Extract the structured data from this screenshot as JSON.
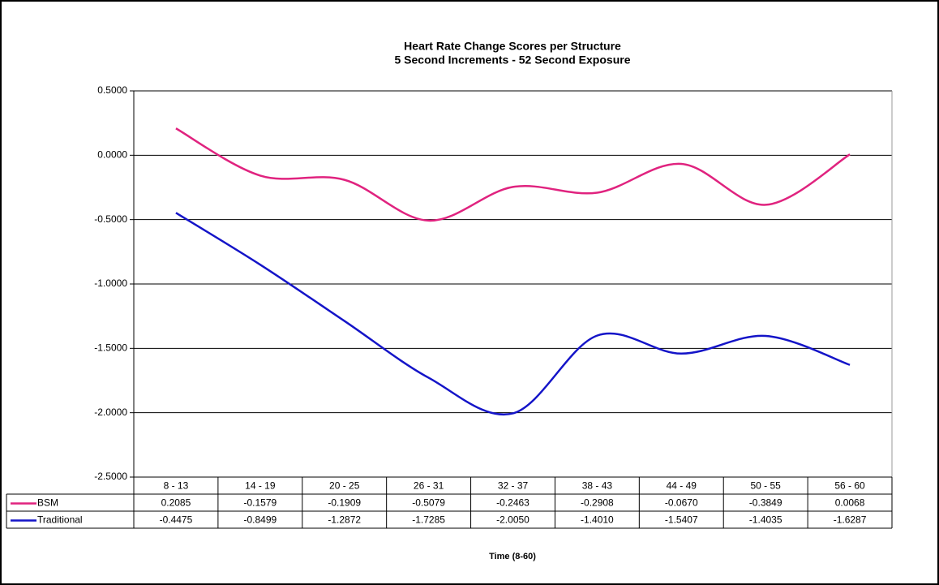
{
  "chart_data": {
    "type": "line",
    "title": "Heart Rate Change Scores per Structure",
    "subtitle": "5 Second Increments - 52 Second Exposure",
    "x_label": "Time (8-60)",
    "categories": [
      "8 - 13",
      "14 - 19",
      "20 - 25",
      "26 - 31",
      "32 - 37",
      "38 - 43",
      "44 - 49",
      "50 - 55",
      "56 - 60"
    ],
    "series": [
      {
        "name": "BSM",
        "color": "#e0237f",
        "values": [
          0.2085,
          -0.1579,
          -0.1909,
          -0.5079,
          -0.2463,
          -0.2908,
          -0.067,
          -0.3849,
          0.0068
        ],
        "value_labels": [
          "0.2085",
          "-0.1579",
          "-0.1909",
          "-0.5079",
          "-0.2463",
          "-0.2908",
          "-0.0670",
          "-0.3849",
          "0.0068"
        ]
      },
      {
        "name": "Traditional",
        "color": "#1414c8",
        "values": [
          -0.4475,
          -0.8499,
          -1.2872,
          -1.7285,
          -2.005,
          -1.401,
          -1.5407,
          -1.4035,
          -1.6287
        ],
        "value_labels": [
          "-0.4475",
          "-0.8499",
          "-1.2872",
          "-1.7285",
          "-2.0050",
          "-1.4010",
          "-1.5407",
          "-1.4035",
          "-1.6287"
        ]
      }
    ],
    "ylim": [
      -2.5,
      0.5
    ],
    "yticks": [
      {
        "value": -2.5,
        "label": "-2.5000"
      },
      {
        "value": -2,
        "label": "-2.0000"
      },
      {
        "value": -1.5,
        "label": "-1.5000"
      },
      {
        "value": -1,
        "label": "-1.0000"
      },
      {
        "value": -0.5,
        "label": "-0.5000"
      },
      {
        "value": 0,
        "label": "0.0000"
      },
      {
        "value": 0.5,
        "label": "0.5000"
      }
    ],
    "grid": true,
    "smooth": true
  }
}
